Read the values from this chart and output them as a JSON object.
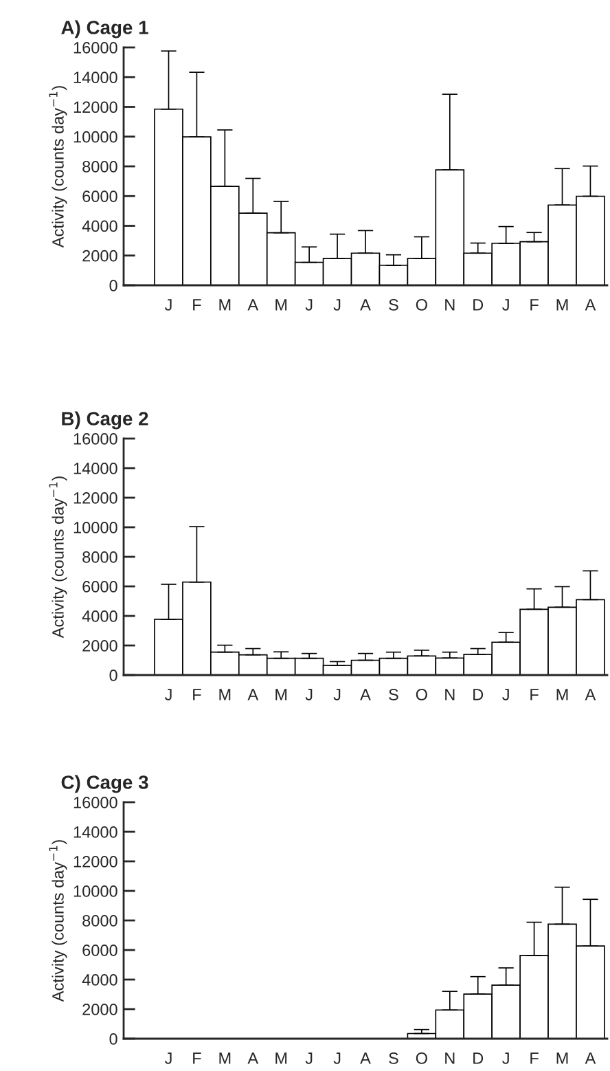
{
  "chart_data": [
    {
      "type": "bar",
      "title": "A) Cage 1",
      "ylabel": "Activity (counts day$^{−1}$)",
      "categories": [
        "J",
        "F",
        "M",
        "A",
        "M",
        "J",
        "J",
        "A",
        "S",
        "O",
        "N",
        "D",
        "J",
        "F",
        "M",
        "A"
      ],
      "values": [
        11850,
        9980,
        6650,
        4850,
        3530,
        1540,
        1810,
        2160,
        1340,
        1810,
        7760,
        2160,
        2820,
        2930,
        5400,
        5990
      ],
      "errors": [
        [
          11850,
          15760
        ],
        [
          9980,
          14330
        ],
        [
          6650,
          10450
        ],
        [
          4850,
          7190
        ],
        [
          3530,
          5640
        ],
        [
          1540,
          2580
        ],
        [
          1810,
          3440
        ],
        [
          2160,
          3680
        ],
        [
          1340,
          2050
        ],
        [
          1810,
          3260
        ],
        [
          7760,
          12850
        ],
        [
          2160,
          2840
        ],
        [
          2820,
          3950
        ],
        [
          2930,
          3550
        ],
        [
          5400,
          7850
        ],
        [
          5990,
          8020
        ]
      ],
      "color": "#ffffff",
      "ylim": [
        0,
        16000
      ],
      "yticks": [
        0,
        2000,
        4000,
        6000,
        8000,
        10000,
        12000,
        14000,
        16000
      ],
      "grid": false,
      "legend": false
    },
    {
      "type": "bar",
      "title": "B) Cage 2",
      "ylabel": "Activity (counts day$^{−1}$)",
      "categories": [
        "J",
        "F",
        "M",
        "A",
        "M",
        "J",
        "J",
        "A",
        "S",
        "O",
        "N",
        "D",
        "J",
        "F",
        "M",
        "A"
      ],
      "values": [
        3770,
        6290,
        1550,
        1370,
        1130,
        1130,
        660,
        1000,
        1130,
        1290,
        1150,
        1400,
        2220,
        4450,
        4590,
        5100
      ],
      "errors": [
        [
          3770,
          6140
        ],
        [
          6290,
          10040
        ],
        [
          1550,
          2020
        ],
        [
          1370,
          1790
        ],
        [
          1130,
          1570
        ],
        [
          1130,
          1460
        ],
        [
          660,
          910
        ],
        [
          1000,
          1460
        ],
        [
          1130,
          1550
        ],
        [
          1290,
          1680
        ],
        [
          1150,
          1550
        ],
        [
          1400,
          1790
        ],
        [
          2220,
          2880
        ],
        [
          4450,
          5830
        ],
        [
          4590,
          5980
        ],
        [
          5100,
          7050
        ]
      ],
      "color": "#ffffff",
      "ylim": [
        0,
        16000
      ],
      "yticks": [
        0,
        2000,
        4000,
        6000,
        8000,
        10000,
        12000,
        14000,
        16000
      ],
      "grid": false,
      "legend": false
    },
    {
      "type": "bar",
      "title": "C) Cage 3",
      "ylabel": "Activity (counts day$^{−1}$)",
      "categories": [
        "J",
        "F",
        "M",
        "A",
        "M",
        "J",
        "J",
        "A",
        "S",
        "O",
        "N",
        "D",
        "J",
        "F",
        "M",
        "A"
      ],
      "values": [
        0,
        0,
        0,
        0,
        0,
        0,
        0,
        0,
        0,
        350,
        1940,
        3020,
        3620,
        5630,
        7750,
        6270
      ],
      "errors": [
        null,
        null,
        null,
        null,
        null,
        null,
        null,
        null,
        null,
        [
          350,
          620
        ],
        [
          1940,
          3200
        ],
        [
          3020,
          4200
        ],
        [
          3620,
          4790
        ],
        [
          5630,
          7880
        ],
        [
          7750,
          10250
        ],
        [
          6270,
          9430
        ]
      ],
      "color": "#ffffff",
      "ylim": [
        0,
        16000
      ],
      "yticks": [
        0,
        2000,
        4000,
        6000,
        8000,
        10000,
        12000,
        14000,
        16000
      ],
      "grid": false,
      "legend": false
    }
  ]
}
